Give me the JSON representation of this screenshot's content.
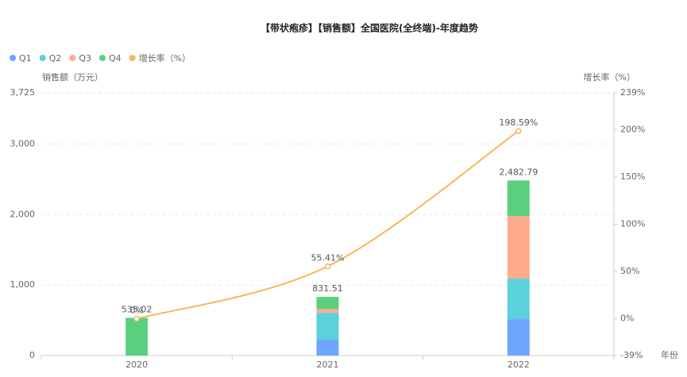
{
  "chart_data": {
    "type": "stacked-bar-line",
    "title": "【带状疱疹】【销售额】全国医院(全终端)-年度趋势",
    "y_label": "销售额（万元）",
    "y2_label": "增长率（%）",
    "x_label": "年份",
    "categories": [
      "2020",
      "2021",
      "2022"
    ],
    "series": [
      {
        "name": "Q1",
        "color": "#6ea6ff",
        "values": [
          0,
          225,
          517
        ]
      },
      {
        "name": "Q2",
        "color": "#5bd1dc",
        "values": [
          0,
          382,
          574
        ]
      },
      {
        "name": "Q3",
        "color": "#ffab8e",
        "values": [
          0,
          57,
          889
        ]
      },
      {
        "name": "Q4",
        "color": "#5ad07f",
        "values": [
          535.02,
          167.51,
          502.79
        ]
      },
      {
        "name": "增长率（%）",
        "color": "#f5b85b",
        "axis": "y2",
        "values": [
          0,
          55.41,
          198.59
        ],
        "value_labels": [
          "0%",
          "55.41%",
          "198.59%"
        ]
      }
    ],
    "totals": {
      "values": [
        535.02,
        831.51,
        2482.79
      ],
      "value_labels": [
        "535.02",
        "831.51",
        "2,482.79"
      ]
    },
    "ylim": [
      0,
      3725
    ],
    "yticks": [
      0,
      {
        "value": 1000,
        "label": "1,000"
      },
      {
        "value": 2000,
        "label": "2,000"
      },
      {
        "value": 3000,
        "label": "3,000"
      },
      {
        "value": 3725,
        "label": "3,725"
      }
    ],
    "y2lim": [
      -39,
      239
    ],
    "y2ticks": [
      {
        "value": -39,
        "label": "-39%"
      },
      {
        "value": 0,
        "label": "0%"
      },
      {
        "value": 50,
        "label": "50%"
      },
      {
        "value": 100,
        "label": "100%"
      },
      {
        "value": 150,
        "label": "150%"
      },
      {
        "value": 200,
        "label": "200%"
      },
      {
        "value": 239,
        "label": "239%"
      }
    ],
    "grid": true
  }
}
